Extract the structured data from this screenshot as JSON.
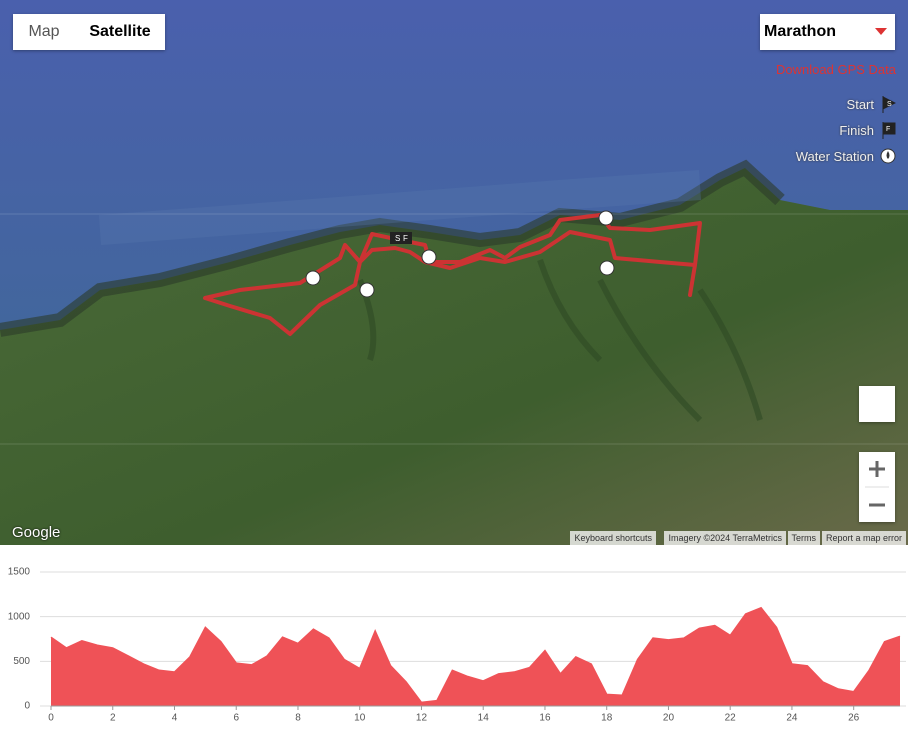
{
  "map": {
    "map_type_buttons": [
      "Map",
      "Satellite"
    ],
    "race_select": "Marathon",
    "download_link": "Download GPS Data",
    "legend": [
      {
        "label": "Start",
        "icon": "S"
      },
      {
        "label": "Finish",
        "icon": "F"
      },
      {
        "label": "Water Station"
      }
    ],
    "logo": "Google",
    "footer": [
      "Keyboard shortcuts",
      "Imagery ©2024 TerraMetrics",
      "Terms",
      "Report a map error"
    ]
  },
  "chart_data": {
    "type": "area",
    "x": [
      0,
      0.5,
      1,
      1.5,
      2,
      2.5,
      3,
      3.5,
      4,
      4.5,
      5,
      5.5,
      6,
      6.5,
      7,
      7.5,
      8,
      8.5,
      9,
      9.5,
      10,
      10.5,
      11,
      11.5,
      12,
      12.5,
      13,
      13.5,
      14,
      14.5,
      15,
      15.5,
      16,
      16.5,
      17,
      17.5,
      18,
      18.5,
      19,
      19.5,
      20,
      20.5,
      21,
      21.5,
      22,
      22.5,
      23,
      23.5,
      24,
      24.5,
      25,
      25.5,
      26,
      26.5,
      27,
      27.5
    ],
    "values": [
      770,
      650,
      730,
      680,
      650,
      560,
      470,
      400,
      380,
      550,
      880,
      720,
      480,
      460,
      560,
      770,
      700,
      860,
      760,
      520,
      420,
      840,
      450,
      270,
      40,
      60,
      400,
      330,
      280,
      360,
      380,
      430,
      620,
      360,
      550,
      470,
      130,
      120,
      520,
      760,
      740,
      760,
      870,
      900,
      790,
      1030,
      1100,
      880,
      470,
      450,
      270,
      190,
      160,
      400,
      720,
      780
    ],
    "color": "#ef5257",
    "xlim": [
      0,
      27.5
    ],
    "xticks": [
      0,
      2,
      4,
      6,
      8,
      10,
      12,
      14,
      16,
      18,
      20,
      22,
      24,
      26
    ],
    "ylim": [
      0,
      1500
    ],
    "yticks": [
      0,
      500,
      1000,
      1500
    ],
    "grid": true
  }
}
